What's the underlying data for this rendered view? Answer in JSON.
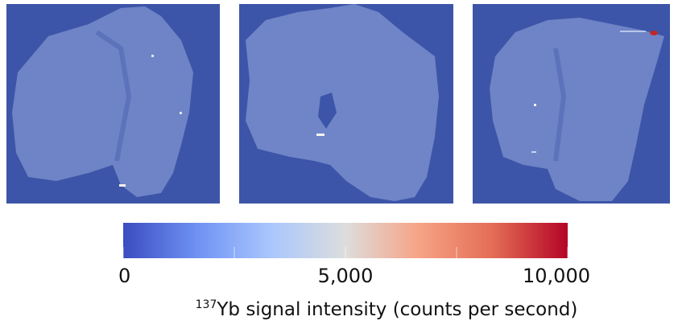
{
  "chart_data": {
    "type": "colorbar",
    "label_superscript": "137",
    "label": "Yb signal intensity (counts per second)",
    "xlim": [
      0,
      10000
    ],
    "xticks": [
      0,
      {
        "value": 5000,
        "label": "5,000"
      },
      {
        "value": 10000,
        "label": "10,000"
      }
    ],
    "minor_xticks": [
      2500,
      7500
    ],
    "colors": [
      "#3b4cc0",
      "#6f92f3",
      "#aac7fd",
      "#dddddd",
      "#f6a385",
      "#e36c55",
      "#b40426"
    ]
  }
}
